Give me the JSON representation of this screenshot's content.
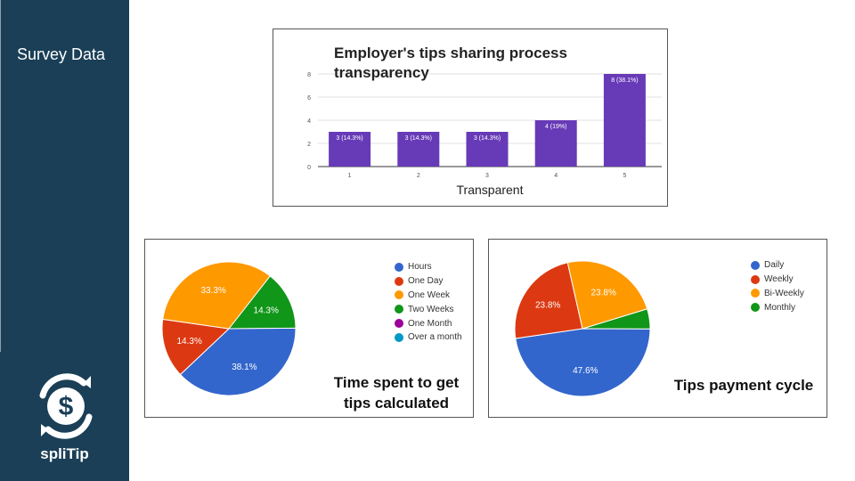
{
  "sidebar": {
    "title": "Survey Data",
    "brand": "spliTip"
  },
  "colors": {
    "sidebar_bg": "#1a3f57",
    "bar_purple": "#673ab7",
    "blue": "#3366cc",
    "red": "#dc3912",
    "orange": "#ff9900",
    "green": "#109618",
    "purple": "#990099",
    "teal": "#0099c6"
  },
  "chart_data": [
    {
      "type": "bar",
      "title": "Employer's tips sharing process transparency",
      "xlabel": "Transparent",
      "ylabel": "",
      "categories": [
        "1",
        "2",
        "3",
        "4",
        "5"
      ],
      "values": [
        3,
        3,
        3,
        4,
        8
      ],
      "data_labels": [
        "3 (14.3%)",
        "3 (14.3%)",
        "3 (14.3%)",
        "4 (19%)",
        "8 (38.1%)"
      ],
      "yticks": [
        "0",
        "2",
        "4",
        "6",
        "8"
      ],
      "ylim": [
        0,
        8
      ],
      "grid": true,
      "color": "#673ab7"
    },
    {
      "type": "pie",
      "caption": "Time spent to get tips calculated",
      "legend_position": "right",
      "legend": [
        "Hours",
        "One Day",
        "One Week",
        "Two Weeks",
        "One Month",
        "Over a month"
      ],
      "legend_colors": [
        "#3366cc",
        "#dc3912",
        "#ff9900",
        "#109618",
        "#990099",
        "#0099c6"
      ],
      "slices": [
        {
          "label": "Hours",
          "value": 38.1,
          "text": "38.1%",
          "color": "#3366cc"
        },
        {
          "label": "One Day",
          "value": 14.3,
          "text": "14.3%",
          "color": "#dc3912"
        },
        {
          "label": "One Week",
          "value": 33.3,
          "text": "33.3%",
          "color": "#ff9900"
        },
        {
          "label": "Two Weeks",
          "value": 14.3,
          "text": "14.3%",
          "color": "#109618"
        }
      ]
    },
    {
      "type": "pie",
      "caption": "Tips payment cycle",
      "legend_position": "right",
      "legend": [
        "Daily",
        "Weekly",
        "Bi-Weekly",
        "Monthly"
      ],
      "legend_colors": [
        "#3366cc",
        "#dc3912",
        "#ff9900",
        "#109618"
      ],
      "slices": [
        {
          "label": "Daily",
          "value": 47.6,
          "text": "47.6%",
          "color": "#3366cc"
        },
        {
          "label": "Weekly",
          "value": 23.8,
          "text": "23.8%",
          "color": "#dc3912"
        },
        {
          "label": "Bi-Weekly",
          "value": 23.8,
          "text": "23.8%",
          "color": "#ff9900"
        },
        {
          "label": "Monthly",
          "value": 4.8,
          "text": "",
          "color": "#109618"
        }
      ]
    }
  ]
}
